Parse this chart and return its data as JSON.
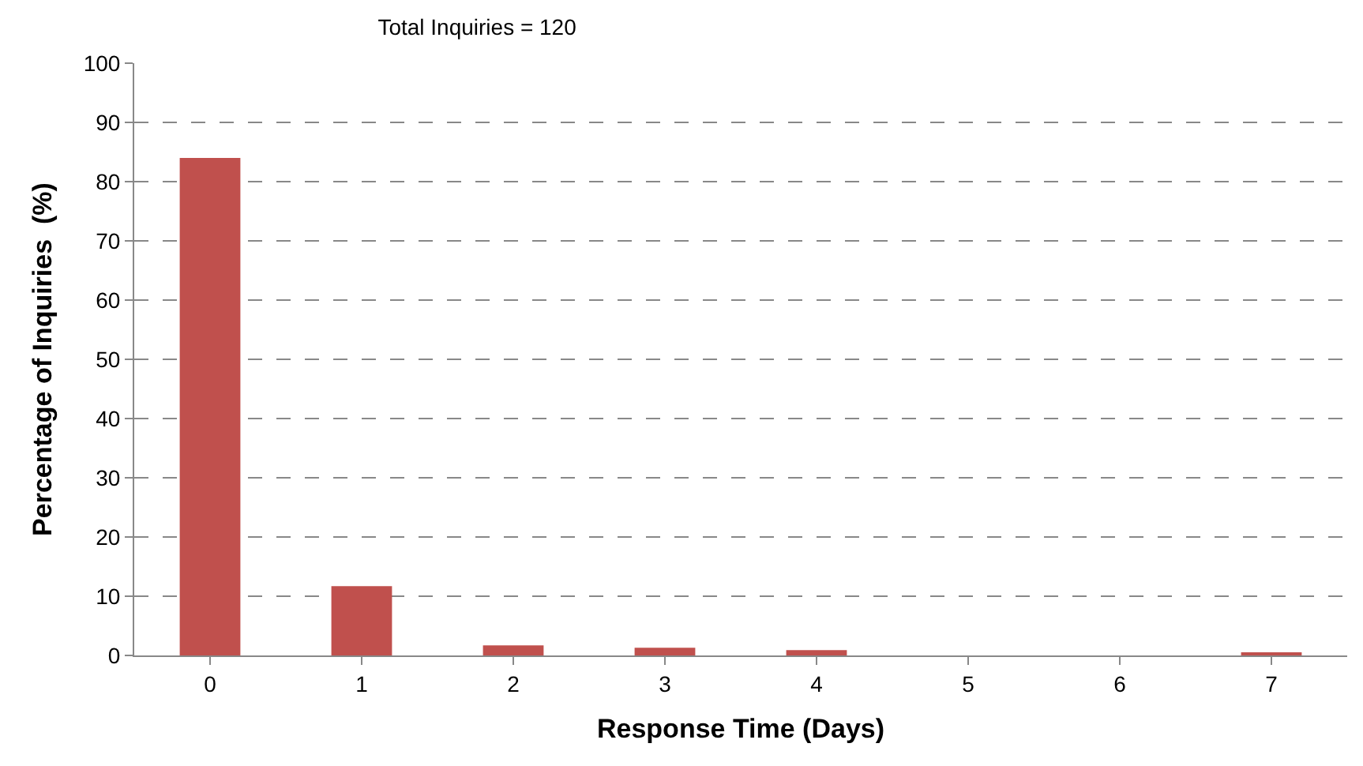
{
  "chart_data": {
    "type": "bar",
    "title": "Total Inquiries = 120",
    "xlabel": "Response Time (Days)",
    "ylabel": "Percentage of Inquiries  (%)",
    "categories": [
      "0",
      "1",
      "2",
      "3",
      "4",
      "5",
      "6",
      "7"
    ],
    "values": [
      84,
      11.7,
      1.7,
      1.3,
      0.9,
      0,
      0,
      0.4
    ],
    "color": "#c0504d",
    "ylim": [
      0,
      100
    ],
    "yticks": [
      0,
      10,
      20,
      30,
      40,
      50,
      60,
      70,
      80,
      90,
      100
    ],
    "grid": "y",
    "legend": false
  }
}
